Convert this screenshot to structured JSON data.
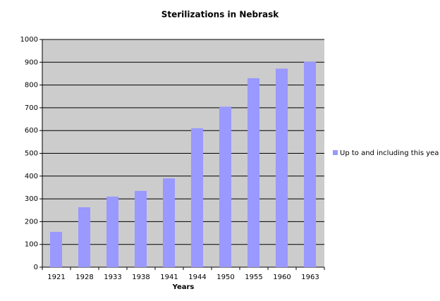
{
  "chart_data": {
    "type": "bar",
    "title": "Sterilizations in Nebrask",
    "x_label": "Years",
    "categories": [
      "1921",
      "1928",
      "1933",
      "1938",
      "1941",
      "1944",
      "1950",
      "1955",
      "1960",
      "1963"
    ],
    "series": [
      {
        "name": "Up to and including this yea",
        "color": "#9999ff",
        "values": [
          155,
          263,
          310,
          335,
          390,
          610,
          705,
          830,
          872,
          902
        ]
      }
    ],
    "ylim": [
      0,
      1000
    ],
    "yticks": [
      0,
      100,
      200,
      300,
      400,
      500,
      600,
      700,
      800,
      900,
      1000
    ],
    "grid": true,
    "legend": "right"
  }
}
